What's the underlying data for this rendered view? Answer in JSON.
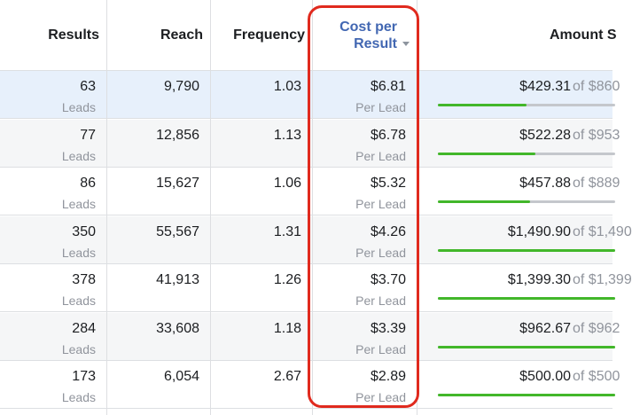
{
  "header": {
    "results": "Results",
    "reach": "Reach",
    "frequency": "Frequency",
    "cost_line1": "Cost per",
    "cost_line2": "Result",
    "amount": "Amount S"
  },
  "rows": [
    {
      "results": "63",
      "results_unit": "Leads",
      "reach": "9,790",
      "frequency": "1.03",
      "cost": "$6.81",
      "cost_unit": "Per Lead",
      "spent": "$429.31",
      "of_budget": "of $860",
      "progress": 0.5
    },
    {
      "results": "77",
      "results_unit": "Leads",
      "reach": "12,856",
      "frequency": "1.13",
      "cost": "$6.78",
      "cost_unit": "Per Lead",
      "spent": "$522.28",
      "of_budget": "of $953",
      "progress": 0.55
    },
    {
      "results": "86",
      "results_unit": "Leads",
      "reach": "15,627",
      "frequency": "1.06",
      "cost": "$5.32",
      "cost_unit": "Per Lead",
      "spent": "$457.88",
      "of_budget": "of $889",
      "progress": 0.52
    },
    {
      "results": "350",
      "results_unit": "Leads",
      "reach": "55,567",
      "frequency": "1.31",
      "cost": "$4.26",
      "cost_unit": "Per Lead",
      "spent": "$1,490.90",
      "of_budget": "of $1,490",
      "progress": 1.0
    },
    {
      "results": "378",
      "results_unit": "Leads",
      "reach": "41,913",
      "frequency": "1.26",
      "cost": "$3.70",
      "cost_unit": "Per Lead",
      "spent": "$1,399.30",
      "of_budget": "of $1,399",
      "progress": 1.0
    },
    {
      "results": "284",
      "results_unit": "Leads",
      "reach": "33,608",
      "frequency": "1.18",
      "cost": "$3.39",
      "cost_unit": "Per Lead",
      "spent": "$962.67",
      "of_budget": "of $962",
      "progress": 1.0
    },
    {
      "results": "173",
      "results_unit": "Leads",
      "reach": "6,054",
      "frequency": "2.67",
      "cost": "$2.89",
      "cost_unit": "Per Lead",
      "spent": "$500.00",
      "of_budget": "of $500",
      "progress": 1.0
    }
  ],
  "colors": {
    "sorted_header": "#4267b2",
    "highlight_outline": "#e02a1e",
    "progress_fill": "#42b72a",
    "progress_track": "#c4c7cc"
  },
  "icons": {
    "sort": "sort-descending-icon"
  }
}
